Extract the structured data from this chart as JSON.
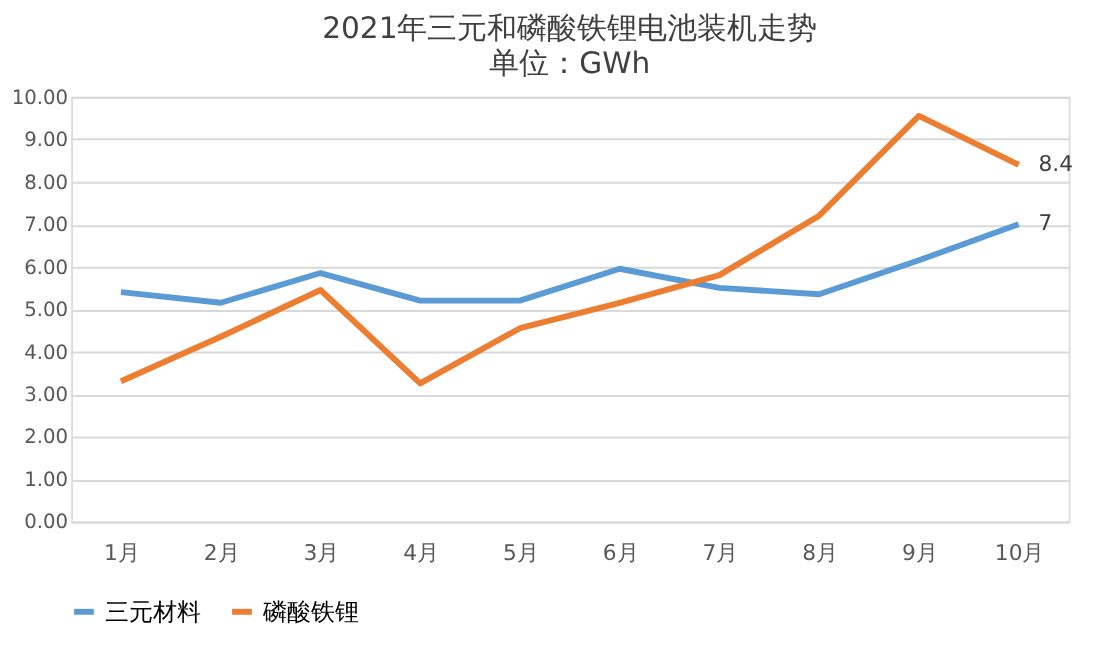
{
  "chart_data": {
    "type": "line",
    "title": "2021年三元和磷酸铁锂电池装机走势",
    "subtitle": "单位：GWh",
    "categories": [
      "1月",
      "2月",
      "3月",
      "4月",
      "5月",
      "6月",
      "7月",
      "8月",
      "9月",
      "10月"
    ],
    "series": [
      {
        "name": "三元材料",
        "color": "#5b9bd5",
        "values": [
          5.4,
          5.15,
          5.85,
          5.2,
          5.2,
          5.95,
          5.5,
          5.35,
          6.15,
          7
        ],
        "value_labels": [
          null,
          null,
          null,
          null,
          null,
          null,
          null,
          null,
          null,
          "7"
        ]
      },
      {
        "name": "磷酸铁锂",
        "color": "#ed7d31",
        "values": [
          3.3,
          4.35,
          5.45,
          3.25,
          4.55,
          5.15,
          5.8,
          7.2,
          9.55,
          8.4
        ],
        "value_labels": [
          null,
          null,
          null,
          null,
          null,
          null,
          null,
          null,
          null,
          "8.4"
        ]
      }
    ],
    "ylim": [
      0,
      10
    ],
    "yticks": [
      {
        "value": 0,
        "label": "0.00"
      },
      {
        "value": 1,
        "label": "1.00"
      },
      {
        "value": 2,
        "label": "2.00"
      },
      {
        "value": 3,
        "label": "3.00"
      },
      {
        "value": 4,
        "label": "4.00"
      },
      {
        "value": 5,
        "label": "5.00"
      },
      {
        "value": 6,
        "label": "6.00"
      },
      {
        "value": 7,
        "label": "7.00"
      },
      {
        "value": 8,
        "label": "8.00"
      },
      {
        "value": 9,
        "label": "9.00"
      },
      {
        "value": 10,
        "label": "10.00"
      }
    ],
    "grid": "y",
    "legend": "bottom",
    "marker": "none",
    "line_style": "solid"
  }
}
